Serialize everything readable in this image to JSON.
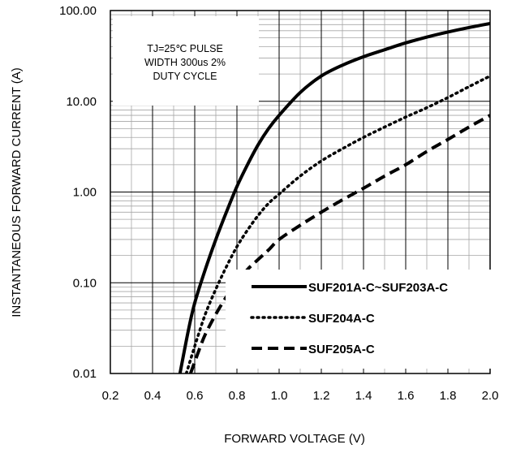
{
  "chart_data": {
    "type": "line",
    "title": "",
    "xlabel": "FORWARD VOLTAGE (V)",
    "ylabel": "INSTANTANEOUS FORWARD CURRENT (A)",
    "x_scale": "linear",
    "y_scale": "log",
    "xlim": [
      0.2,
      2.0
    ],
    "ylim": [
      0.01,
      100
    ],
    "x_ticks": [
      "0.2",
      "0.4",
      "0.6",
      "0.8",
      "1.0",
      "1.2",
      "1.4",
      "1.6",
      "1.8",
      "2.0"
    ],
    "y_ticks": [
      "0.01",
      "0.10",
      "1.00",
      "10.00",
      "100.00"
    ],
    "grid": true,
    "annotation": [
      "TJ=25℃ PULSE",
      "WIDTH 300us 2%",
      "DUTY CYCLE"
    ],
    "legend_position": "bottom-right",
    "series": [
      {
        "name": "SUF201A-C~SUF203A-C",
        "style": "solid",
        "x": [
          0.53,
          0.57,
          0.6,
          0.65,
          0.7,
          0.75,
          0.8,
          0.85,
          0.9,
          0.95,
          1.0,
          1.1,
          1.2,
          1.3,
          1.4,
          1.5,
          1.6,
          1.7,
          1.8,
          1.9,
          2.0
        ],
        "y": [
          0.01,
          0.03,
          0.06,
          0.14,
          0.3,
          0.6,
          1.15,
          2.0,
          3.3,
          5.0,
          7.0,
          12.5,
          19.0,
          25.0,
          31.0,
          37.0,
          44.0,
          51.0,
          58.0,
          65.0,
          72.0
        ]
      },
      {
        "name": "SUF204A-C",
        "style": "dotted",
        "x": [
          0.56,
          0.6,
          0.65,
          0.7,
          0.75,
          0.8,
          0.85,
          0.9,
          0.95,
          1.0,
          1.1,
          1.2,
          1.3,
          1.4,
          1.5,
          1.6,
          1.7,
          1.8,
          1.9,
          2.0
        ],
        "y": [
          0.01,
          0.02,
          0.045,
          0.085,
          0.15,
          0.25,
          0.38,
          0.55,
          0.75,
          0.95,
          1.5,
          2.2,
          3.0,
          4.0,
          5.2,
          6.7,
          8.5,
          11.0,
          14.5,
          19.0
        ]
      },
      {
        "name": "SUF205A-C",
        "style": "dashed",
        "x": [
          0.58,
          0.62,
          0.65,
          0.7,
          0.75,
          0.8,
          0.85,
          0.9,
          0.95,
          1.0,
          1.1,
          1.2,
          1.3,
          1.4,
          1.5,
          1.6,
          1.7,
          1.8,
          1.9,
          2.0
        ],
        "y": [
          0.01,
          0.018,
          0.027,
          0.045,
          0.07,
          0.1,
          0.14,
          0.18,
          0.23,
          0.3,
          0.43,
          0.6,
          0.82,
          1.1,
          1.5,
          2.0,
          2.8,
          3.8,
          5.2,
          7.0
        ]
      }
    ]
  }
}
